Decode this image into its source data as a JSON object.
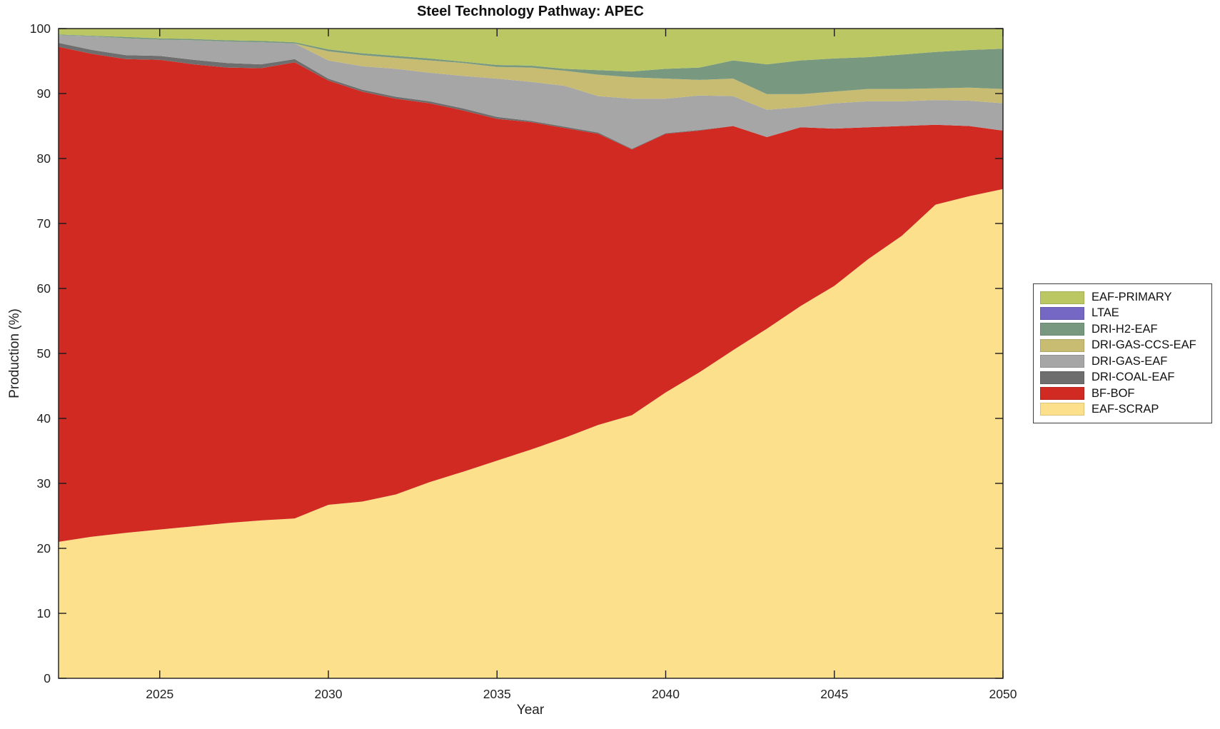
{
  "chart_data": {
    "type": "area",
    "stacked": true,
    "title": "Steel Technology Pathway: APEC",
    "xlabel": "Year",
    "ylabel": "Production (%)",
    "xlim": [
      2022,
      2050
    ],
    "ylim": [
      0,
      100
    ],
    "xticks": [
      2025,
      2030,
      2035,
      2040,
      2045,
      2050
    ],
    "yticks": [
      0,
      10,
      20,
      30,
      40,
      50,
      60,
      70,
      80,
      90,
      100
    ],
    "grid": false,
    "axis_color": "#1a1a1a",
    "legend_position": "right-outside",
    "legend_order_top_to_bottom": [
      "EAF-PRIMARY",
      "LTAE",
      "DRI-H2-EAF",
      "DRI-GAS-CCS-EAF",
      "DRI-GAS-EAF",
      "DRI-COAL-EAF",
      "BF-BOF",
      "EAF-SCRAP"
    ],
    "x": [
      2022,
      2023,
      2024,
      2025,
      2026,
      2027,
      2028,
      2029,
      2030,
      2031,
      2032,
      2033,
      2034,
      2035,
      2036,
      2037,
      2038,
      2039,
      2040,
      2041,
      2042,
      2043,
      2044,
      2045,
      2046,
      2047,
      2048,
      2049,
      2050
    ],
    "series": [
      {
        "name": "EAF-SCRAP",
        "color": "#fce08c",
        "values": [
          21.0,
          21.8,
          22.4,
          22.9,
          23.4,
          23.9,
          24.3,
          24.6,
          26.7,
          27.2,
          28.3,
          30.2,
          31.8,
          33.5,
          35.2,
          37.0,
          39.0,
          40.5,
          44.0,
          47.1,
          50.5,
          53.8,
          57.3,
          60.4,
          64.5,
          68.1,
          72.9,
          74.2,
          75.3
        ]
      },
      {
        "name": "BF-BOF",
        "color": "#d02a22",
        "values": [
          76.2,
          74.3,
          72.9,
          72.3,
          71.1,
          70.1,
          69.6,
          70.2,
          65.3,
          63.1,
          60.9,
          58.3,
          55.6,
          52.6,
          50.4,
          47.7,
          44.8,
          40.9,
          39.8,
          37.2,
          34.5,
          29.5,
          27.5,
          24.2,
          20.3,
          16.9,
          12.3,
          10.8,
          9.0
        ]
      },
      {
        "name": "DRI-COAL-EAF",
        "color": "#6e6e6e",
        "values": [
          0.6,
          0.6,
          0.6,
          0.6,
          0.7,
          0.7,
          0.6,
          0.5,
          0.3,
          0.3,
          0.3,
          0.3,
          0.3,
          0.3,
          0.2,
          0.2,
          0.2,
          0.1,
          0.1,
          0.1,
          0,
          0,
          0,
          0,
          0,
          0,
          0,
          0,
          0
        ]
      },
      {
        "name": "DRI-GAS-EAF",
        "color": "#a6a6a6",
        "values": [
          1.2,
          2.1,
          2.6,
          2.5,
          3.0,
          3.3,
          3.4,
          2.4,
          2.8,
          3.6,
          4.3,
          4.4,
          5.0,
          5.9,
          6.0,
          6.3,
          5.6,
          7.7,
          5.3,
          5.3,
          4.6,
          4.2,
          3.1,
          3.9,
          4.0,
          3.8,
          3.8,
          3.9,
          4.2
        ]
      },
      {
        "name": "DRI-GAS-CCS-EAF",
        "color": "#c8bc72",
        "values": [
          0,
          0,
          0,
          0,
          0,
          0,
          0,
          0,
          1.4,
          1.7,
          1.7,
          1.9,
          2.0,
          1.8,
          2.2,
          2.3,
          3.3,
          3.3,
          3.1,
          2.4,
          2.7,
          2.4,
          2.0,
          1.8,
          1.9,
          1.9,
          1.8,
          2.0,
          2.2
        ]
      },
      {
        "name": "DRI-H2-EAF",
        "color": "#78997f",
        "values": [
          0.1,
          0.1,
          0.2,
          0.2,
          0.2,
          0.2,
          0.2,
          0.2,
          0.3,
          0.3,
          0.3,
          0.3,
          0.2,
          0.3,
          0.3,
          0.3,
          0.7,
          0.9,
          1.5,
          1.9,
          2.8,
          4.6,
          5.2,
          5.1,
          4.9,
          5.3,
          5.6,
          5.8,
          6.2
        ]
      },
      {
        "name": "LTAE",
        "color": "#7568c4",
        "values": [
          0,
          0,
          0,
          0,
          0,
          0,
          0,
          0,
          0,
          0,
          0,
          0,
          0,
          0,
          0,
          0,
          0,
          0,
          0,
          0,
          0,
          0,
          0,
          0,
          0,
          0,
          0,
          0,
          0
        ]
      },
      {
        "name": "EAF-PRIMARY",
        "color": "#bac763",
        "values": [
          0.9,
          1.1,
          1.3,
          1.5,
          1.6,
          1.8,
          1.9,
          2.1,
          3.2,
          3.8,
          4.2,
          4.6,
          5.1,
          5.6,
          5.7,
          6.2,
          6.4,
          6.6,
          6.2,
          6.0,
          4.9,
          5.5,
          4.9,
          4.6,
          4.4,
          4.0,
          3.6,
          3.3,
          3.1
        ]
      }
    ]
  }
}
